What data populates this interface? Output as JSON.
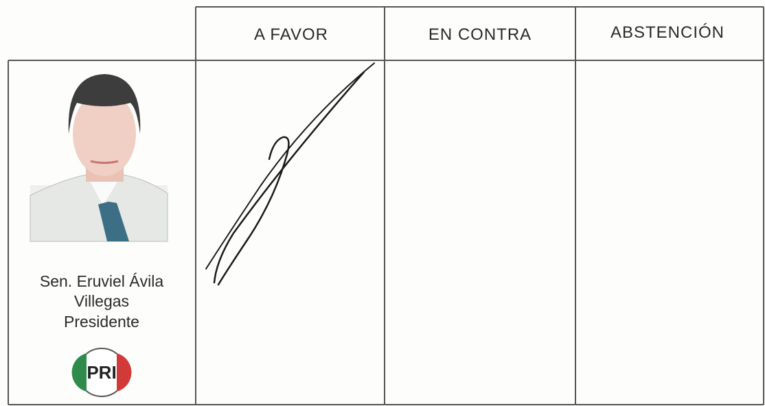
{
  "table": {
    "headers": [
      "A FAVOR",
      "EN CONTRA",
      "ABSTENCIÓN"
    ],
    "rows": [
      {
        "name_lines": [
          "Sen. Eruviel Ávila",
          "Villegas"
        ],
        "role": "Presidente",
        "party": "PRI"
      }
    ]
  }
}
